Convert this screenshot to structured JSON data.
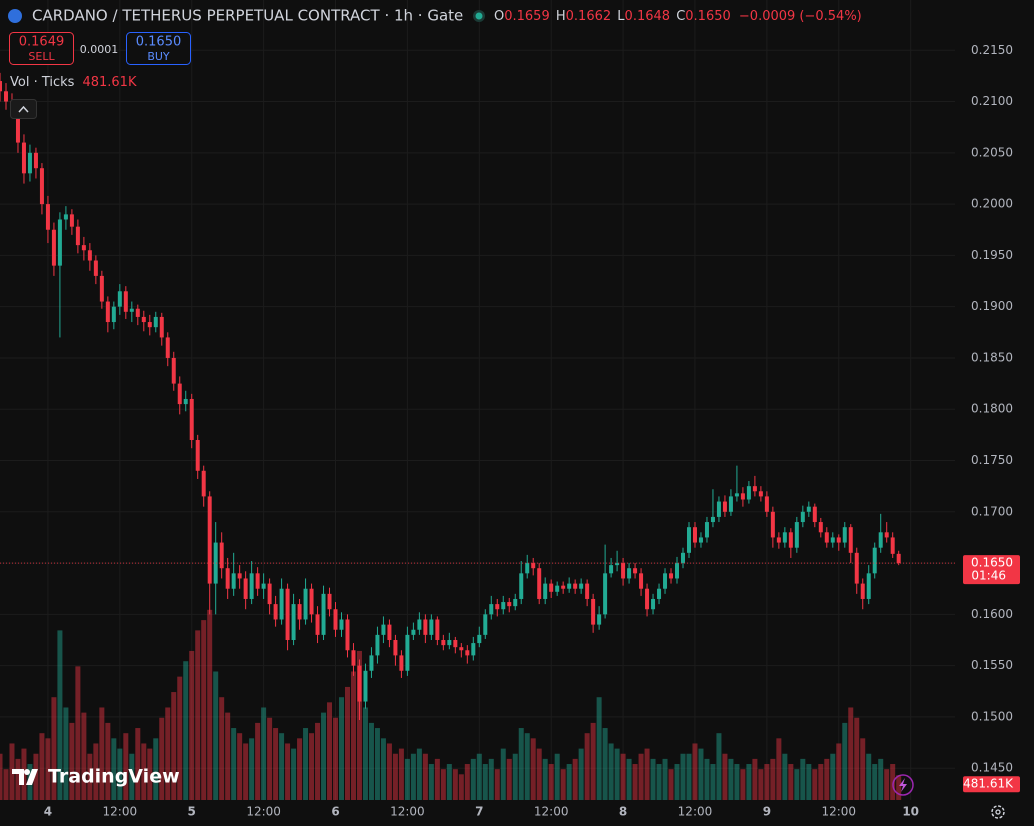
{
  "chart_data": {
    "type": "candlestick",
    "title": "CARDANO / TETHERUS PERPETUAL CONTRACT · 1h · Gate",
    "ohlc_legend": [
      [
        "O",
        "0.1659"
      ],
      [
        "H",
        "0.1662"
      ],
      [
        "L",
        "0.1648"
      ],
      [
        "C",
        "0.1650"
      ]
    ],
    "change": "−0.0009 (−0.54%)",
    "sell": {
      "price": "0.1649",
      "label": "SELL"
    },
    "spread": "0.0001",
    "buy": {
      "price": "0.1650",
      "label": "BUY"
    },
    "volume_title": "Vol · Ticks",
    "volume_last_label": "481.61K",
    "last_price_label": "0.1650",
    "countdown": "01:46",
    "logo": "TradingView",
    "up_color": "#22ab94",
    "down_color": "#f23645",
    "grid": true,
    "xlim": [
      0,
      159.4
    ],
    "ylim": [
      0.1419,
      0.2199
    ],
    "xticks": [
      {
        "value": 8,
        "label": "4"
      },
      {
        "value": 20,
        "label": "12:00"
      },
      {
        "value": 32,
        "label": "5"
      },
      {
        "value": 44,
        "label": "12:00"
      },
      {
        "value": 56,
        "label": "6"
      },
      {
        "value": 68,
        "label": "12:00"
      },
      {
        "value": 80,
        "label": "7"
      },
      {
        "value": 92,
        "label": "12:00"
      },
      {
        "value": 104,
        "label": "8"
      },
      {
        "value": 116,
        "label": "12:00"
      },
      {
        "value": 128,
        "label": "9"
      },
      {
        "value": 140,
        "label": "12:00"
      },
      {
        "value": 152,
        "label": "10"
      }
    ],
    "yticks": [
      {
        "value": 0.145,
        "label": "0.1450"
      },
      {
        "value": 0.15,
        "label": "0.1500"
      },
      {
        "value": 0.155,
        "label": "0.1550"
      },
      {
        "value": 0.16,
        "label": "0.1600"
      },
      {
        "value": 0.165,
        "label": "0.1650"
      },
      {
        "value": 0.17,
        "label": "0.1700"
      },
      {
        "value": 0.175,
        "label": "0.1750"
      },
      {
        "value": 0.18,
        "label": "0.1800"
      },
      {
        "value": 0.185,
        "label": "0.1850"
      },
      {
        "value": 0.19,
        "label": "0.1900"
      },
      {
        "value": 0.195,
        "label": "0.1950"
      },
      {
        "value": 0.2,
        "label": "0.2000"
      },
      {
        "value": 0.205,
        "label": "0.2050"
      },
      {
        "value": 0.21,
        "label": "0.2100"
      },
      {
        "value": 0.215,
        "label": "0.2150"
      }
    ],
    "x": [
      0,
      1,
      2,
      3,
      4,
      5,
      6,
      7,
      8,
      9,
      10,
      11,
      12,
      13,
      14,
      15,
      16,
      17,
      18,
      19,
      20,
      21,
      22,
      23,
      24,
      25,
      26,
      27,
      28,
      29,
      30,
      31,
      32,
      33,
      34,
      35,
      36,
      37,
      38,
      39,
      40,
      41,
      42,
      43,
      44,
      45,
      46,
      47,
      48,
      49,
      50,
      51,
      52,
      53,
      54,
      55,
      56,
      57,
      58,
      59,
      60,
      61,
      62,
      63,
      64,
      65,
      66,
      67,
      68,
      69,
      70,
      71,
      72,
      73,
      74,
      75,
      76,
      77,
      78,
      79,
      80,
      81,
      82,
      83,
      84,
      85,
      86,
      87,
      88,
      89,
      90,
      91,
      92,
      93,
      94,
      95,
      96,
      97,
      98,
      99,
      100,
      101,
      102,
      103,
      104,
      105,
      106,
      107,
      108,
      109,
      110,
      111,
      112,
      113,
      114,
      115,
      116,
      117,
      118,
      119,
      120,
      121,
      122,
      123,
      124,
      125,
      126,
      127,
      128,
      129,
      130,
      131,
      132,
      133,
      134,
      135,
      136,
      137,
      138,
      139,
      140,
      141,
      142,
      143,
      144,
      145,
      146,
      147,
      148,
      149,
      150
    ],
    "ohlc": [
      [
        0.212,
        0.2128,
        0.21,
        0.211
      ],
      [
        0.211,
        0.2118,
        0.2092,
        0.21
      ],
      [
        0.21,
        0.2108,
        0.2085,
        0.2095
      ],
      [
        0.2095,
        0.21,
        0.205,
        0.206
      ],
      [
        0.206,
        0.2068,
        0.202,
        0.203
      ],
      [
        0.203,
        0.2058,
        0.2022,
        0.205
      ],
      [
        0.205,
        0.2055,
        0.2025,
        0.2035
      ],
      [
        0.2035,
        0.204,
        0.199,
        0.2
      ],
      [
        0.2,
        0.2008,
        0.1962,
        0.1975
      ],
      [
        0.1975,
        0.1982,
        0.193,
        0.194
      ],
      [
        0.194,
        0.1992,
        0.187,
        0.1985
      ],
      [
        0.1985,
        0.1998,
        0.1975,
        0.199
      ],
      [
        0.199,
        0.1995,
        0.197,
        0.1978
      ],
      [
        0.1978,
        0.1985,
        0.1952,
        0.196
      ],
      [
        0.196,
        0.1968,
        0.1945,
        0.1955
      ],
      [
        0.1955,
        0.1962,
        0.1935,
        0.1945
      ],
      [
        0.1945,
        0.195,
        0.1922,
        0.193
      ],
      [
        0.193,
        0.1935,
        0.1898,
        0.1905
      ],
      [
        0.1905,
        0.191,
        0.1875,
        0.1885
      ],
      [
        0.1885,
        0.1905,
        0.1878,
        0.19
      ],
      [
        0.19,
        0.1922,
        0.1892,
        0.1915
      ],
      [
        0.1915,
        0.192,
        0.1888,
        0.1895
      ],
      [
        0.1895,
        0.1905,
        0.1885,
        0.1898
      ],
      [
        0.1898,
        0.1902,
        0.1882,
        0.189
      ],
      [
        0.189,
        0.1896,
        0.1876,
        0.1885
      ],
      [
        0.1885,
        0.1892,
        0.1872,
        0.188
      ],
      [
        0.188,
        0.1895,
        0.1875,
        0.189
      ],
      [
        0.189,
        0.1894,
        0.1862,
        0.187
      ],
      [
        0.187,
        0.1875,
        0.1842,
        0.185
      ],
      [
        0.185,
        0.1856,
        0.1818,
        0.1825
      ],
      [
        0.1825,
        0.1832,
        0.1795,
        0.1805
      ],
      [
        0.1805,
        0.1818,
        0.1798,
        0.181
      ],
      [
        0.181,
        0.1815,
        0.1762,
        0.177
      ],
      [
        0.177,
        0.1775,
        0.1732,
        0.174
      ],
      [
        0.174,
        0.1745,
        0.1705,
        0.1715
      ],
      [
        0.1715,
        0.172,
        0.16,
        0.163
      ],
      [
        0.163,
        0.169,
        0.16,
        0.167
      ],
      [
        0.167,
        0.168,
        0.1635,
        0.1645
      ],
      [
        0.1645,
        0.1655,
        0.1615,
        0.1625
      ],
      [
        0.1625,
        0.166,
        0.1618,
        0.164
      ],
      [
        0.164,
        0.1648,
        0.1625,
        0.1635
      ],
      [
        0.1635,
        0.1642,
        0.1605,
        0.1615
      ],
      [
        0.1615,
        0.1652,
        0.161,
        0.164
      ],
      [
        0.164,
        0.1646,
        0.1618,
        0.1625
      ],
      [
        0.1625,
        0.164,
        0.1615,
        0.163
      ],
      [
        0.163,
        0.1635,
        0.16,
        0.161
      ],
      [
        0.161,
        0.1618,
        0.1588,
        0.1595
      ],
      [
        0.1595,
        0.1635,
        0.159,
        0.1625
      ],
      [
        0.1625,
        0.163,
        0.1565,
        0.1575
      ],
      [
        0.1575,
        0.162,
        0.157,
        0.161
      ],
      [
        0.161,
        0.1615,
        0.1585,
        0.1595
      ],
      [
        0.1595,
        0.1635,
        0.159,
        0.1625
      ],
      [
        0.1625,
        0.163,
        0.1592,
        0.16
      ],
      [
        0.16,
        0.1608,
        0.1572,
        0.158
      ],
      [
        0.158,
        0.1628,
        0.1575,
        0.162
      ],
      [
        0.162,
        0.1626,
        0.1598,
        0.1605
      ],
      [
        0.1605,
        0.1612,
        0.1578,
        0.1585
      ],
      [
        0.1585,
        0.1602,
        0.1578,
        0.1595
      ],
      [
        0.1595,
        0.16,
        0.1558,
        0.1565
      ],
      [
        0.1565,
        0.1572,
        0.154,
        0.155
      ],
      [
        0.155,
        0.1556,
        0.1497,
        0.1515
      ],
      [
        0.1515,
        0.1552,
        0.1508,
        0.1545
      ],
      [
        0.1545,
        0.1568,
        0.1538,
        0.156
      ],
      [
        0.156,
        0.1588,
        0.1552,
        0.158
      ],
      [
        0.158,
        0.1598,
        0.1572,
        0.159
      ],
      [
        0.159,
        0.1595,
        0.1568,
        0.1575
      ],
      [
        0.1575,
        0.158,
        0.155,
        0.156
      ],
      [
        0.156,
        0.1565,
        0.1538,
        0.1545
      ],
      [
        0.1545,
        0.1588,
        0.154,
        0.158
      ],
      [
        0.158,
        0.1592,
        0.1575,
        0.1585
      ],
      [
        0.1585,
        0.1602,
        0.158,
        0.1595
      ],
      [
        0.1595,
        0.16,
        0.1572,
        0.158
      ],
      [
        0.158,
        0.16,
        0.1575,
        0.1595
      ],
      [
        0.1595,
        0.1598,
        0.157,
        0.1575
      ],
      [
        0.1575,
        0.158,
        0.1565,
        0.157
      ],
      [
        0.157,
        0.1582,
        0.1566,
        0.1575
      ],
      [
        0.1575,
        0.1578,
        0.1562,
        0.1568
      ],
      [
        0.1568,
        0.1572,
        0.1558,
        0.1565
      ],
      [
        0.1565,
        0.157,
        0.1552,
        0.156
      ],
      [
        0.156,
        0.1578,
        0.1555,
        0.1572
      ],
      [
        0.1572,
        0.1588,
        0.1568,
        0.158
      ],
      [
        0.158,
        0.1605,
        0.1576,
        0.16
      ],
      [
        0.16,
        0.1618,
        0.1595,
        0.161
      ],
      [
        0.161,
        0.1615,
        0.1598,
        0.1605
      ],
      [
        0.1605,
        0.1618,
        0.16,
        0.1612
      ],
      [
        0.1612,
        0.1616,
        0.1602,
        0.1608
      ],
      [
        0.1608,
        0.162,
        0.1604,
        0.1615
      ],
      [
        0.1615,
        0.1652,
        0.161,
        0.164
      ],
      [
        0.164,
        0.1658,
        0.1635,
        0.165
      ],
      [
        0.165,
        0.1655,
        0.1638,
        0.1645
      ],
      [
        0.1645,
        0.165,
        0.161,
        0.1615
      ],
      [
        0.1615,
        0.1636,
        0.161,
        0.163
      ],
      [
        0.163,
        0.1634,
        0.1616,
        0.1622
      ],
      [
        0.1622,
        0.1632,
        0.1618,
        0.1628
      ],
      [
        0.1628,
        0.1632,
        0.162,
        0.1625
      ],
      [
        0.1625,
        0.1636,
        0.1621,
        0.163
      ],
      [
        0.163,
        0.1634,
        0.162,
        0.1625
      ],
      [
        0.1625,
        0.1635,
        0.162,
        0.163
      ],
      [
        0.163,
        0.1634,
        0.1608,
        0.1615
      ],
      [
        0.1615,
        0.162,
        0.1582,
        0.159
      ],
      [
        0.159,
        0.1608,
        0.1585,
        0.16
      ],
      [
        0.16,
        0.1668,
        0.1596,
        0.164
      ],
      [
        0.164,
        0.1655,
        0.1636,
        0.1648
      ],
      [
        0.1648,
        0.1662,
        0.1642,
        0.165
      ],
      [
        0.165,
        0.1655,
        0.1628,
        0.1635
      ],
      [
        0.1635,
        0.165,
        0.163,
        0.1645
      ],
      [
        0.1645,
        0.165,
        0.1635,
        0.164
      ],
      [
        0.164,
        0.1645,
        0.1618,
        0.1625
      ],
      [
        0.1625,
        0.163,
        0.1598,
        0.1605
      ],
      [
        0.1605,
        0.162,
        0.16,
        0.1615
      ],
      [
        0.1615,
        0.163,
        0.161,
        0.1625
      ],
      [
        0.1625,
        0.1645,
        0.162,
        0.164
      ],
      [
        0.164,
        0.1645,
        0.163,
        0.1635
      ],
      [
        0.1635,
        0.1656,
        0.163,
        0.165
      ],
      [
        0.165,
        0.1665,
        0.1645,
        0.166
      ],
      [
        0.166,
        0.169,
        0.1655,
        0.1685
      ],
      [
        0.1685,
        0.169,
        0.1665,
        0.167
      ],
      [
        0.167,
        0.168,
        0.1665,
        0.1675
      ],
      [
        0.1675,
        0.1695,
        0.167,
        0.169
      ],
      [
        0.169,
        0.1722,
        0.1685,
        0.1695
      ],
      [
        0.1695,
        0.1715,
        0.169,
        0.171
      ],
      [
        0.171,
        0.1716,
        0.1695,
        0.17
      ],
      [
        0.17,
        0.1722,
        0.1696,
        0.1715
      ],
      [
        0.1715,
        0.1745,
        0.171,
        0.1718
      ],
      [
        0.1718,
        0.1724,
        0.1705,
        0.1712
      ],
      [
        0.1712,
        0.173,
        0.1708,
        0.1725
      ],
      [
        0.1725,
        0.1735,
        0.1715,
        0.172
      ],
      [
        0.172,
        0.1725,
        0.171,
        0.1715
      ],
      [
        0.1715,
        0.172,
        0.1695,
        0.17
      ],
      [
        0.17,
        0.1705,
        0.1665,
        0.1675
      ],
      [
        0.1675,
        0.168,
        0.1664,
        0.167
      ],
      [
        0.167,
        0.1685,
        0.1665,
        0.168
      ],
      [
        0.168,
        0.1684,
        0.1655,
        0.1665
      ],
      [
        0.1665,
        0.1695,
        0.166,
        0.169
      ],
      [
        0.169,
        0.1706,
        0.1685,
        0.17
      ],
      [
        0.17,
        0.171,
        0.1695,
        0.1705
      ],
      [
        0.1705,
        0.1708,
        0.1685,
        0.169
      ],
      [
        0.169,
        0.1694,
        0.1675,
        0.168
      ],
      [
        0.168,
        0.1685,
        0.1665,
        0.167
      ],
      [
        0.167,
        0.168,
        0.1665,
        0.1675
      ],
      [
        0.1675,
        0.1678,
        0.1662,
        0.167
      ],
      [
        0.167,
        0.169,
        0.1665,
        0.1685
      ],
      [
        0.1685,
        0.1688,
        0.165,
        0.166
      ],
      [
        0.166,
        0.1665,
        0.162,
        0.163
      ],
      [
        0.163,
        0.1635,
        0.1605,
        0.1615
      ],
      [
        0.1615,
        0.1648,
        0.161,
        0.164
      ],
      [
        0.164,
        0.167,
        0.1635,
        0.1665
      ],
      [
        0.1665,
        0.1698,
        0.166,
        0.168
      ],
      [
        0.168,
        0.169,
        0.167,
        0.1675
      ],
      [
        0.1675,
        0.168,
        0.1655,
        0.1659
      ],
      [
        0.1659,
        0.1662,
        0.1648,
        0.165
      ]
    ],
    "volume": [
      900,
      600,
      1100,
      800,
      1000,
      700,
      900,
      1300,
      1200,
      2000,
      3300,
      1800,
      1500,
      2600,
      1700,
      900,
      1100,
      1800,
      1500,
      1200,
      1000,
      1300,
      900,
      1400,
      1100,
      1000,
      1200,
      1600,
      1800,
      2100,
      2400,
      2700,
      2900,
      3300,
      3500,
      3700,
      2500,
      2000,
      1700,
      1400,
      1300,
      1100,
      1200,
      1500,
      1800,
      1600,
      1400,
      1300,
      1100,
      1000,
      1200,
      1400,
      1300,
      1500,
      1700,
      1900,
      1600,
      2000,
      2200,
      2500,
      2900,
      1800,
      1500,
      1400,
      1200,
      1100,
      900,
      1000,
      800,
      900,
      1000,
      900,
      700,
      800,
      600,
      700,
      600,
      500,
      700,
      800,
      900,
      700,
      800,
      600,
      1000,
      800,
      900,
      1400,
      1300,
      1200,
      1000,
      800,
      700,
      900,
      600,
      700,
      800,
      1000,
      1300,
      1500,
      2000,
      1400,
      1100,
      1000,
      900,
      800,
      700,
      900,
      1000,
      800,
      700,
      800,
      600,
      700,
      900,
      900,
      1100,
      1000,
      800,
      700,
      1300,
      900,
      800,
      700,
      600,
      700,
      800,
      600,
      700,
      800,
      1200,
      900,
      700,
      600,
      800,
      700,
      600,
      700,
      800,
      900,
      1100,
      1500,
      1800,
      1600,
      1200,
      900,
      700,
      800,
      600,
      700,
      481.61
    ]
  }
}
